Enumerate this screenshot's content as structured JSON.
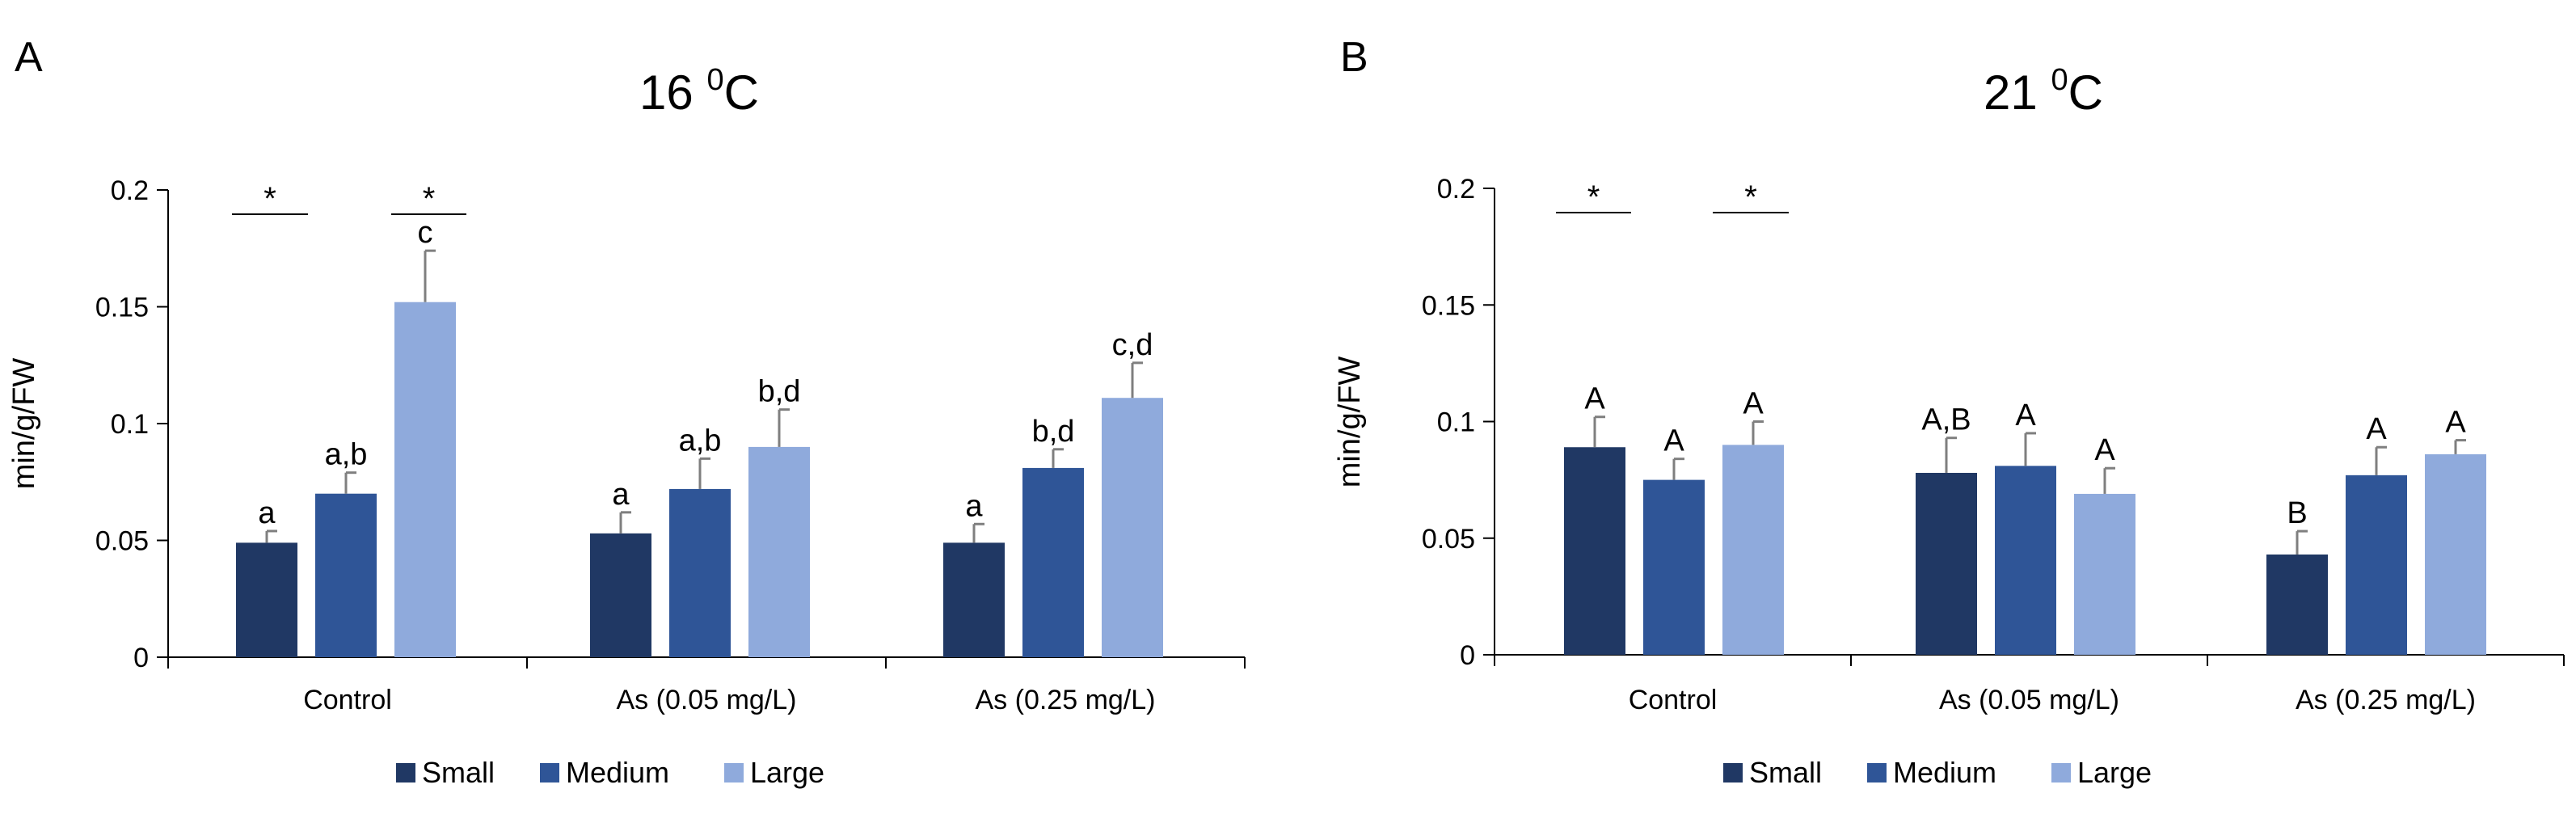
{
  "colors": {
    "small": "#203864",
    "medium": "#2F5597",
    "large": "#8FAADC",
    "axis": "#000000",
    "errorbar": "#7F7F7F"
  },
  "chart_data": [
    {
      "type": "bar",
      "panel_label": "A",
      "title_main": "16 ",
      "title_sup": "0",
      "title_unit": "C",
      "ylabel": "min/g/FW",
      "xlabel": "",
      "ylim": [
        0,
        0.2
      ],
      "yticks": [
        "0",
        "0.05",
        "0.1",
        "0.15",
        "0.2"
      ],
      "categories": [
        "Control",
        "As (0.05 mg/L)",
        "As (0.25 mg/L)"
      ],
      "legend": [
        "Small",
        "Medium",
        "Large"
      ],
      "series": [
        {
          "name": "Small",
          "values": [
            0.049,
            0.053,
            0.049
          ],
          "errors": [
            0.005,
            0.009,
            0.008
          ],
          "letters": [
            "a",
            "a",
            "a"
          ]
        },
        {
          "name": "Medium",
          "values": [
            0.07,
            0.072,
            0.081
          ],
          "errors": [
            0.009,
            0.013,
            0.008
          ],
          "letters": [
            "a,b",
            "a,b",
            "b,d"
          ]
        },
        {
          "name": "Large",
          "values": [
            0.152,
            0.09,
            0.111
          ],
          "errors": [
            0.022,
            0.016,
            0.015
          ],
          "letters": [
            "c",
            "b,d",
            "c,d"
          ]
        }
      ],
      "significance": [
        {
          "label": "*",
          "between": "Control: Small vs Medium"
        },
        {
          "label": "*",
          "between": "Control: Large"
        }
      ]
    },
    {
      "type": "bar",
      "panel_label": "B",
      "title_main": "21 ",
      "title_sup": "0",
      "title_unit": "C",
      "ylabel": "min/g/FW",
      "xlabel": "",
      "ylim": [
        0,
        0.2
      ],
      "yticks": [
        "0",
        "0.05",
        "0.1",
        "0.15",
        "0.2"
      ],
      "categories": [
        "Control",
        "As (0.05 mg/L)",
        "As (0.25 mg/L)"
      ],
      "legend": [
        "Small",
        "Medium",
        "Large"
      ],
      "series": [
        {
          "name": "Small",
          "values": [
            0.089,
            0.078,
            0.043
          ],
          "errors": [
            0.013,
            0.015,
            0.01
          ],
          "letters": [
            "A",
            "A,B",
            "B"
          ]
        },
        {
          "name": "Medium",
          "values": [
            0.075,
            0.081,
            0.077
          ],
          "errors": [
            0.009,
            0.014,
            0.012
          ],
          "letters": [
            "A",
            "A",
            "A"
          ]
        },
        {
          "name": "Large",
          "values": [
            0.09,
            0.069,
            0.086
          ],
          "errors": [
            0.01,
            0.011,
            0.006
          ],
          "letters": [
            "A",
            "A",
            "A"
          ]
        }
      ],
      "significance": [
        {
          "label": "*",
          "between": "Control: Small vs Medium"
        },
        {
          "label": "*",
          "between": "Control: Large"
        }
      ]
    }
  ]
}
